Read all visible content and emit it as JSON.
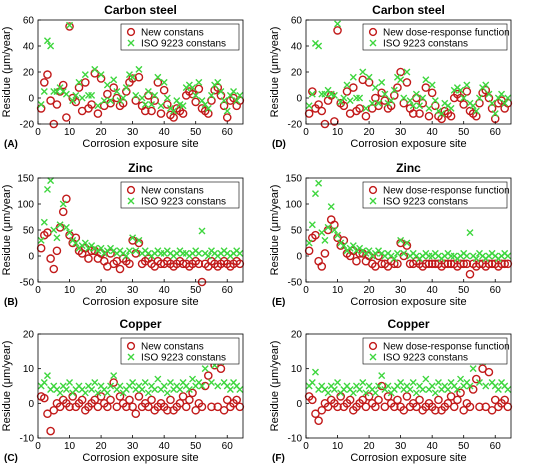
{
  "colors": {
    "new": "#c21a1a",
    "iso": "#3ed63e"
  },
  "chart_data": [
    {
      "type": "scatter",
      "title": "Carbon steel",
      "panel": "(A)",
      "xlabel": "Corrosion exposure site",
      "ylabel": "",
      "xlim": [
        0,
        65
      ],
      "ylim": [
        -20,
        60
      ],
      "xticks": [
        0,
        10,
        20,
        30,
        40,
        50,
        60
      ],
      "yticks": [
        -20,
        0,
        20,
        40,
        60
      ],
      "legend_position": "top-right",
      "series": [
        {
          "name": "New constans",
          "marker": "circle",
          "values": [
            -8,
            12,
            18,
            -2,
            -20,
            -5,
            5,
            10,
            -15,
            55,
            0,
            -3,
            8,
            -10,
            12,
            -8,
            -5,
            19,
            -12,
            15,
            -6,
            3,
            -4,
            8,
            0,
            -6,
            -4,
            5,
            12,
            15,
            -2,
            16,
            -6,
            -10,
            2,
            -10,
            -2,
            12,
            -12,
            6,
            -5,
            -13,
            -15,
            -8,
            -10,
            -12,
            2,
            5,
            3,
            -3,
            7,
            -8,
            -10,
            -12,
            -2,
            6,
            8,
            2,
            -6,
            -15,
            -2,
            0,
            -6,
            -2
          ]
        },
        {
          "name": "ISO 9223 constans",
          "marker": "x",
          "values": [
            -5,
            5,
            44,
            40,
            5,
            5,
            8,
            5,
            3,
            56,
            -2,
            2,
            12,
            0,
            18,
            2,
            2,
            22,
            -6,
            18,
            -2,
            10,
            -2,
            14,
            5,
            -2,
            0,
            8,
            18,
            16,
            2,
            22,
            0,
            -5,
            5,
            -5,
            2,
            16,
            -6,
            12,
            0,
            -8,
            -10,
            -2,
            -5,
            -6,
            8,
            10,
            8,
            2,
            12,
            -2,
            -5,
            -8,
            2,
            10,
            12,
            5,
            -2,
            -10,
            2,
            5,
            -2,
            2
          ]
        }
      ]
    },
    {
      "type": "scatter",
      "title": "Carbon steel",
      "panel": "(D)",
      "xlabel": "Corrosion exposure site",
      "ylabel": "",
      "xlim": [
        0,
        65
      ],
      "ylim": [
        -20,
        60
      ],
      "xticks": [
        0,
        10,
        20,
        30,
        40,
        50,
        60
      ],
      "yticks": [
        -20,
        0,
        20,
        40,
        60
      ],
      "legend_position": "top-right",
      "series": [
        {
          "name": "New dose-response function",
          "marker": "circle",
          "values": [
            -12,
            5,
            -8,
            -5,
            -10,
            -20,
            -2,
            2,
            -18,
            52,
            -4,
            -6,
            5,
            -12,
            8,
            -10,
            -8,
            14,
            -14,
            12,
            -8,
            0,
            -6,
            4,
            -2,
            -8,
            -6,
            2,
            8,
            20,
            -4,
            12,
            -8,
            -12,
            0,
            -12,
            -4,
            8,
            -14,
            4,
            -6,
            -14,
            -16,
            -10,
            -12,
            -14,
            0,
            3,
            0,
            -5,
            5,
            -10,
            -12,
            -14,
            -4,
            4,
            6,
            0,
            -8,
            -16,
            -4,
            -2,
            -8,
            -4
          ]
        },
        {
          "name": "ISO 9223 constans",
          "marker": "x",
          "values": [
            -6,
            3,
            42,
            40,
            3,
            3,
            6,
            3,
            2,
            57,
            -3,
            0,
            10,
            -2,
            16,
            0,
            0,
            20,
            -8,
            16,
            -4,
            8,
            -4,
            12,
            3,
            -4,
            -2,
            6,
            16,
            14,
            0,
            20,
            -2,
            -6,
            3,
            -6,
            0,
            14,
            -8,
            10,
            -2,
            -10,
            -12,
            -4,
            -6,
            -8,
            6,
            8,
            6,
            0,
            10,
            -4,
            -6,
            -10,
            0,
            8,
            10,
            3,
            -4,
            -12,
            0,
            3,
            -4,
            0
          ]
        }
      ]
    },
    {
      "type": "scatter",
      "title": "Zinc",
      "panel": "(B)",
      "xlabel": "Corrosion exposure site",
      "ylabel": "Residue (μm/year)",
      "xlim": [
        0,
        65
      ],
      "ylim": [
        -50,
        150
      ],
      "xticks": [
        0,
        10,
        20,
        30,
        40,
        50,
        60
      ],
      "yticks": [
        -50,
        0,
        50,
        100,
        150
      ],
      "legend_position": "top-right",
      "series": [
        {
          "name": "New  constans",
          "marker": "circle",
          "values": [
            15,
            40,
            45,
            -5,
            -25,
            10,
            55,
            85,
            110,
            40,
            25,
            35,
            10,
            5,
            15,
            -5,
            10,
            10,
            -5,
            5,
            -10,
            -20,
            5,
            -15,
            -10,
            -25,
            -5,
            -10,
            -15,
            30,
            5,
            25,
            -15,
            -10,
            -5,
            -15,
            -20,
            -10,
            -15,
            -15,
            -10,
            -15,
            -20,
            -15,
            -10,
            -15,
            -15,
            -20,
            -15,
            -10,
            -15,
            -50,
            -15,
            -20,
            -10,
            -15,
            -20,
            -15,
            -10,
            -15,
            -20,
            -15,
            -10,
            -15
          ]
        },
        {
          "name": "ISO 9223 constans",
          "marker": "x",
          "values": [
            30,
            65,
            128,
            145,
            50,
            35,
            60,
            100,
            55,
            45,
            30,
            25,
            15,
            20,
            25,
            15,
            20,
            15,
            10,
            15,
            5,
            10,
            15,
            10,
            5,
            10,
            5,
            0,
            10,
            35,
            10,
            30,
            5,
            10,
            5,
            0,
            5,
            10,
            5,
            5,
            10,
            5,
            0,
            5,
            10,
            5,
            5,
            0,
            5,
            10,
            5,
            48,
            5,
            0,
            10,
            5,
            0,
            5,
            10,
            5,
            0,
            5,
            10,
            5
          ]
        }
      ]
    },
    {
      "type": "scatter",
      "title": "Zinc",
      "panel": "(E)",
      "xlabel": "Corrosion exposure site",
      "ylabel": "",
      "xlim": [
        0,
        65
      ],
      "ylim": [
        -50,
        150
      ],
      "xticks": [
        0,
        10,
        20,
        30,
        40,
        50,
        60
      ],
      "yticks": [
        -50,
        0,
        50,
        100,
        150
      ],
      "legend_position": "top-right",
      "series": [
        {
          "name": "New dose-response function",
          "marker": "circle",
          "values": [
            10,
            35,
            40,
            -10,
            -20,
            5,
            50,
            70,
            60,
            35,
            20,
            30,
            5,
            0,
            10,
            -10,
            5,
            5,
            -10,
            0,
            -15,
            -20,
            0,
            -15,
            -15,
            -20,
            -10,
            -15,
            -15,
            25,
            0,
            20,
            -15,
            -15,
            -10,
            -15,
            -20,
            -15,
            -15,
            -15,
            -15,
            -15,
            -20,
            -15,
            -15,
            -15,
            -15,
            -20,
            -15,
            -15,
            -15,
            -35,
            -15,
            -20,
            -15,
            -15,
            -20,
            -15,
            -15,
            -15,
            -20,
            -15,
            -15,
            -15
          ]
        },
        {
          "name": "ISO 9223 constans",
          "marker": "x",
          "values": [
            25,
            60,
            120,
            140,
            45,
            30,
            55,
            95,
            50,
            40,
            25,
            20,
            10,
            15,
            20,
            10,
            15,
            10,
            5,
            10,
            0,
            5,
            10,
            5,
            0,
            5,
            0,
            -5,
            5,
            30,
            5,
            25,
            0,
            5,
            0,
            -5,
            0,
            5,
            0,
            0,
            5,
            0,
            -5,
            0,
            5,
            0,
            0,
            -5,
            0,
            5,
            0,
            45,
            0,
            -5,
            5,
            0,
            -5,
            0,
            5,
            0,
            -5,
            0,
            5,
            0
          ]
        }
      ]
    },
    {
      "type": "scatter",
      "title": "Copper",
      "panel": "(C)",
      "xlabel": "Corrosion exposure site",
      "ylabel": "",
      "xlim": [
        0,
        65
      ],
      "ylim": [
        -10,
        20
      ],
      "xticks": [
        0,
        10,
        20,
        30,
        40,
        50,
        60
      ],
      "yticks": [
        -10,
        0,
        10,
        20
      ],
      "legend_position": "top-right",
      "series": [
        {
          "name": "New constans",
          "marker": "circle",
          "values": [
            2,
            1.5,
            -3,
            -8,
            -2,
            0,
            -1,
            1,
            0,
            -1,
            2,
            -1,
            0,
            1,
            -2,
            -1,
            0,
            1,
            -1,
            2,
            0,
            -1,
            1,
            6,
            -1,
            2,
            0,
            -1,
            1,
            -1,
            -3,
            2,
            -1,
            0,
            -1,
            1,
            -2,
            -1,
            0,
            -1,
            -2,
            1,
            -2,
            -1,
            0,
            2,
            -1,
            1,
            3,
            -2,
            0,
            -1,
            5,
            8,
            -1,
            11,
            -1,
            10,
            -2,
            1,
            -1,
            0,
            1,
            -1
          ]
        },
        {
          "name": "ISO 9223 constans",
          "marker": "x",
          "values": [
            5,
            6,
            8,
            4,
            5,
            4,
            3,
            5,
            4,
            6,
            3,
            4,
            5,
            4,
            3,
            5,
            4,
            6,
            3,
            5,
            4,
            3,
            5,
            8,
            4,
            5,
            3,
            4,
            5,
            6,
            4,
            5,
            4,
            6,
            3,
            5,
            4,
            7,
            4,
            5,
            3,
            6,
            4,
            5,
            4,
            6,
            5,
            4,
            7,
            5,
            6,
            5,
            10,
            13,
            6,
            11,
            5,
            12,
            6,
            5,
            4,
            6,
            5,
            4
          ]
        }
      ]
    },
    {
      "type": "scatter",
      "title": "Copper",
      "panel": "(F)",
      "xlabel": "Corrosion exposure site",
      "ylabel": "",
      "xlim": [
        0,
        65
      ],
      "ylim": [
        -10,
        20
      ],
      "xticks": [
        0,
        10,
        20,
        30,
        40,
        50,
        60
      ],
      "yticks": [
        -10,
        0,
        10,
        20
      ],
      "legend_position": "top-right",
      "series": [
        {
          "name": "New dose-response function",
          "marker": "circle",
          "values": [
            2,
            1,
            -3,
            -5,
            -2,
            0,
            -1,
            1,
            0,
            -1,
            2,
            -1,
            0,
            1,
            -2,
            -1,
            0,
            1,
            -1,
            2,
            0,
            -1,
            1,
            5,
            -1,
            2,
            0,
            -1,
            1,
            -1,
            -2,
            2,
            -1,
            0,
            -1,
            1,
            -2,
            -1,
            0,
            -1,
            -2,
            1,
            -2,
            -1,
            0,
            2,
            -1,
            1,
            3,
            -2,
            0,
            -1,
            4,
            7,
            -1,
            10,
            -1,
            9,
            -2,
            1,
            -1,
            0,
            1,
            -1
          ]
        },
        {
          "name": "ISO 9223 constans",
          "marker": "x",
          "values": [
            5,
            6,
            9,
            4,
            5,
            4,
            3,
            5,
            4,
            6,
            3,
            4,
            5,
            4,
            3,
            5,
            4,
            6,
            3,
            5,
            4,
            3,
            5,
            8,
            4,
            5,
            3,
            4,
            5,
            6,
            4,
            5,
            4,
            6,
            3,
            5,
            4,
            7,
            4,
            5,
            3,
            6,
            4,
            5,
            4,
            6,
            5,
            4,
            7,
            5,
            6,
            5,
            10,
            14,
            6,
            12,
            5,
            13,
            6,
            5,
            4,
            6,
            5,
            4
          ]
        }
      ]
    }
  ]
}
